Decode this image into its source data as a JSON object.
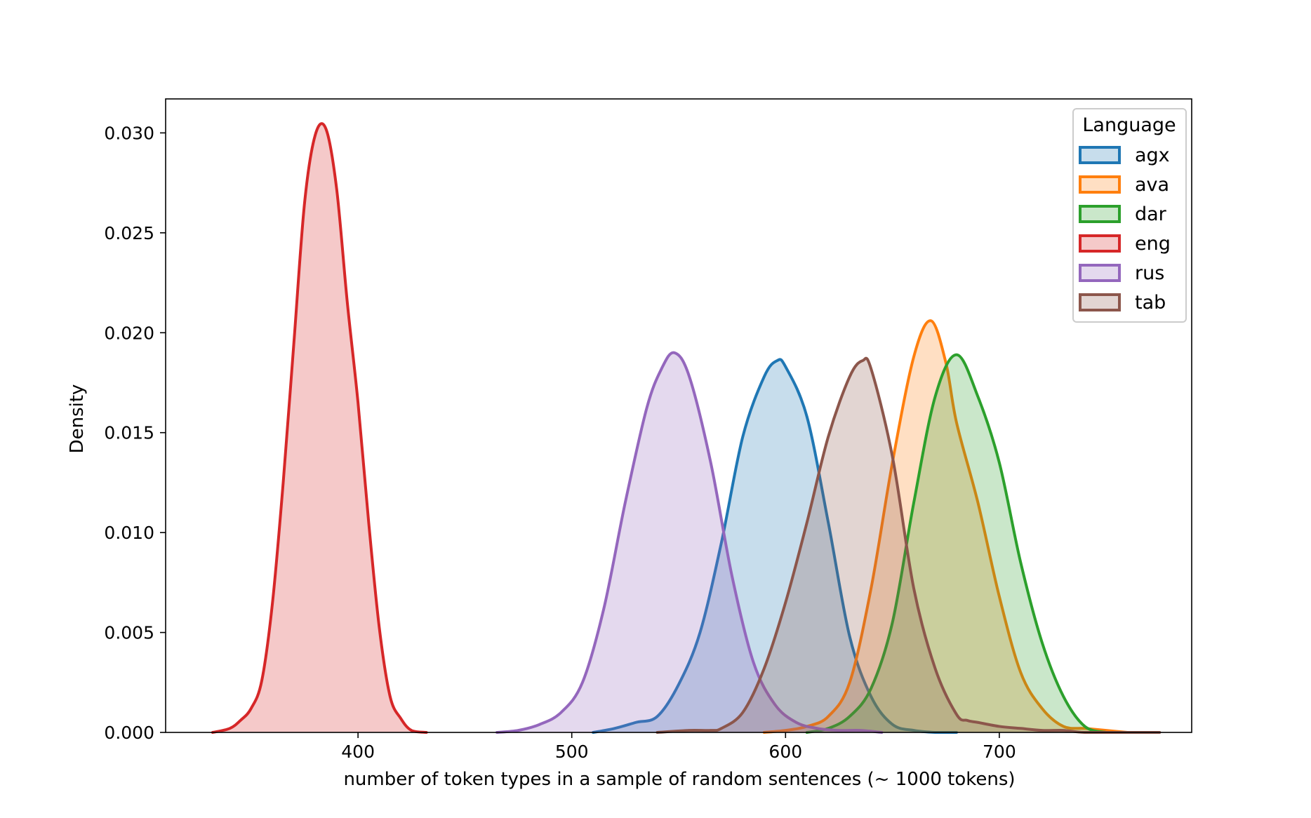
{
  "chart_data": {
    "type": "area",
    "title": "",
    "xlabel": "number of token types in a sample of random sentences (~ 1000 tokens)",
    "ylabel": "Density",
    "xlim": [
      310,
      790
    ],
    "ylim": [
      0,
      0.0317
    ],
    "x_ticks": [
      400,
      500,
      600,
      700
    ],
    "x_tick_labels": [
      "400",
      "500",
      "600",
      "700"
    ],
    "y_ticks": [
      0,
      0.005,
      0.01,
      0.015,
      0.02,
      0.025,
      0.03
    ],
    "y_tick_labels": [
      "0.000",
      "0.005",
      "0.010",
      "0.015",
      "0.020",
      "0.025",
      "0.030"
    ],
    "grid": false,
    "legend": {
      "title": "Language",
      "placement": "top-right"
    },
    "series": [
      {
        "name": "agx",
        "color": "#1f77b4",
        "x": [
          510,
          520,
          530,
          540,
          550,
          560,
          570,
          580,
          590,
          596,
          600,
          610,
          620,
          630,
          640,
          650,
          660,
          670,
          680
        ],
        "y": [
          0,
          0.0002,
          0.0005,
          0.0008,
          0.0024,
          0.005,
          0.0095,
          0.0148,
          0.0178,
          0.0186,
          0.0183,
          0.0158,
          0.0105,
          0.0048,
          0.0018,
          0.0004,
          0.0001,
          0,
          0
        ]
      },
      {
        "name": "ava",
        "color": "#ff7f0e",
        "x": [
          590,
          600,
          610,
          620,
          630,
          640,
          650,
          660,
          668,
          675,
          680,
          690,
          700,
          710,
          720,
          730,
          740,
          750,
          760
        ],
        "y": [
          0,
          0.0001,
          0.0003,
          0.0008,
          0.0025,
          0.0072,
          0.0135,
          0.0188,
          0.0206,
          0.0185,
          0.0155,
          0.0115,
          0.0068,
          0.003,
          0.0012,
          0.0003,
          0.0002,
          0.0001,
          0
        ]
      },
      {
        "name": "dar",
        "color": "#2ca02c",
        "x": [
          610,
          620,
          630,
          640,
          650,
          660,
          670,
          680,
          690,
          700,
          710,
          720,
          730,
          740,
          750
        ],
        "y": [
          0,
          0.0002,
          0.0008,
          0.0022,
          0.0055,
          0.0115,
          0.0168,
          0.0189,
          0.0168,
          0.0135,
          0.0085,
          0.0045,
          0.0018,
          0.0003,
          0
        ]
      },
      {
        "name": "eng",
        "color": "#d62728",
        "x": [
          332,
          340,
          345,
          350,
          355,
          360,
          365,
          370,
          375,
          380,
          385,
          390,
          395,
          400,
          405,
          410,
          415,
          420,
          425,
          432
        ],
        "y": [
          0,
          0.0002,
          0.0006,
          0.0012,
          0.0026,
          0.0065,
          0.0125,
          0.0195,
          0.0265,
          0.0299,
          0.0302,
          0.0272,
          0.0215,
          0.0165,
          0.0105,
          0.0052,
          0.0018,
          0.0007,
          0.0001,
          0
        ]
      },
      {
        "name": "rus",
        "color": "#9467bd",
        "x": [
          465,
          475,
          485,
          495,
          505,
          515,
          525,
          535,
          542,
          548,
          555,
          565,
          575,
          585,
          595,
          605,
          615,
          625,
          635,
          645
        ],
        "y": [
          0,
          0.0001,
          0.0004,
          0.001,
          0.0025,
          0.0062,
          0.0115,
          0.0162,
          0.0182,
          0.019,
          0.0178,
          0.0135,
          0.0078,
          0.0035,
          0.0014,
          0.0005,
          0.0002,
          0.0001,
          0.0001,
          0
        ]
      },
      {
        "name": "tab",
        "color": "#8c564b",
        "x": [
          540,
          555,
          565,
          570,
          580,
          590,
          600,
          610,
          620,
          630,
          636,
          640,
          650,
          660,
          670,
          680,
          685,
          690,
          700,
          710,
          720,
          730,
          740,
          760,
          775
        ],
        "y": [
          0,
          0.0001,
          0.0001,
          0.0002,
          0.001,
          0.0032,
          0.0065,
          0.0105,
          0.0148,
          0.0178,
          0.0186,
          0.0182,
          0.0138,
          0.0072,
          0.0032,
          0.0009,
          0.0006,
          0.0005,
          0.0003,
          0.0002,
          0.0001,
          0.0001,
          0,
          0,
          0
        ]
      }
    ]
  }
}
